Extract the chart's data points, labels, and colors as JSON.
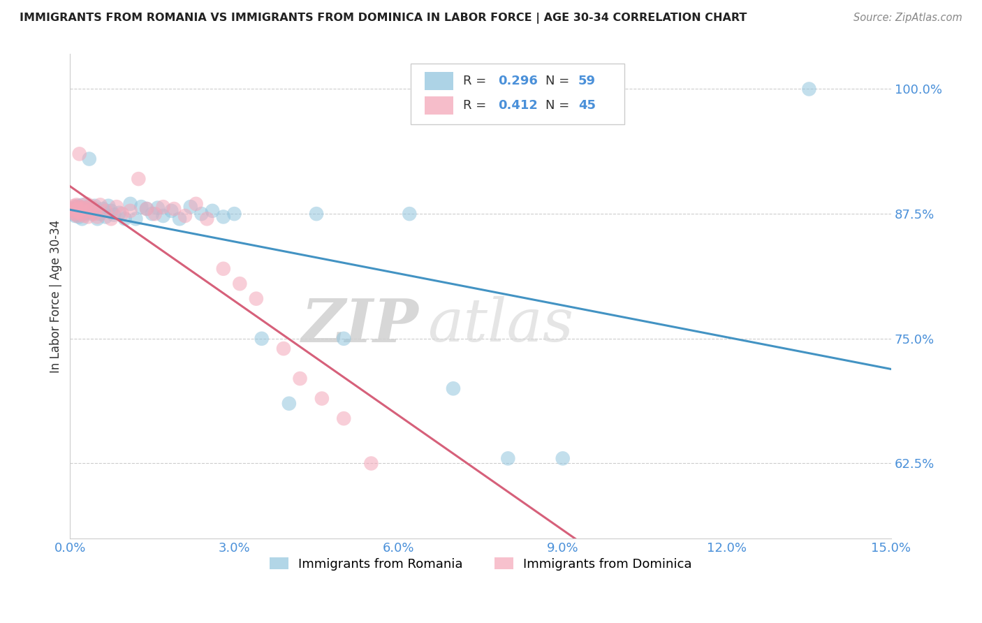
{
  "title": "IMMIGRANTS FROM ROMANIA VS IMMIGRANTS FROM DOMINICA IN LABOR FORCE | AGE 30-34 CORRELATION CHART",
  "source": "Source: ZipAtlas.com",
  "ylabel": "In Labor Force | Age 30-34",
  "xlabel": "",
  "xlim": [
    0.0,
    15.0
  ],
  "ylim": [
    55.0,
    103.5
  ],
  "yticks": [
    62.5,
    75.0,
    87.5,
    100.0
  ],
  "ytick_labels": [
    "62.5%",
    "75.0%",
    "87.5%",
    "100.0%"
  ],
  "xticks": [
    0.0,
    3.0,
    6.0,
    9.0,
    12.0,
    15.0
  ],
  "xtick_labels": [
    "0.0%",
    "3.0%",
    "6.0%",
    "9.0%",
    "12.0%",
    "15.0%"
  ],
  "romania_color": "#92c5de",
  "dominica_color": "#f4a7b9",
  "romania_line_color": "#4393c3",
  "dominica_line_color": "#d6607a",
  "romania_label": "Immigrants from Romania",
  "dominica_label": "Immigrants from Dominica",
  "watermark_color": "#d8d8d8",
  "tick_color": "#4a90d9",
  "grid_color": "#cccccc",
  "title_color": "#222222",
  "source_color": "#888888",
  "ylabel_color": "#333333",
  "legend_border_color": "#cccccc",
  "romania_x": [
    0.05,
    0.07,
    0.08,
    0.09,
    0.1,
    0.11,
    0.12,
    0.13,
    0.14,
    0.15,
    0.16,
    0.17,
    0.18,
    0.19,
    0.2,
    0.22,
    0.23,
    0.25,
    0.27,
    0.28,
    0.3,
    0.32,
    0.35,
    0.37,
    0.4,
    0.43,
    0.45,
    0.5,
    0.55,
    0.6,
    0.65,
    0.7,
    0.75,
    0.8,
    0.9,
    1.0,
    1.1,
    1.2,
    1.3,
    1.4,
    1.5,
    1.6,
    1.7,
    1.85,
    2.0,
    2.2,
    2.4,
    2.6,
    2.8,
    3.0,
    3.5,
    4.0,
    4.5,
    5.0,
    6.2,
    7.0,
    8.0,
    9.0,
    13.5
  ],
  "romania_y": [
    87.5,
    87.8,
    88.0,
    87.3,
    88.2,
    87.6,
    88.0,
    87.4,
    87.9,
    88.3,
    87.2,
    87.8,
    88.1,
    87.5,
    87.9,
    87.0,
    88.4,
    88.0,
    87.5,
    87.8,
    87.6,
    88.2,
    93.0,
    87.9,
    87.5,
    88.1,
    88.3,
    87.0,
    87.5,
    88.0,
    87.2,
    88.3,
    87.8,
    87.4,
    87.6,
    87.0,
    88.5,
    87.0,
    88.2,
    88.0,
    87.5,
    88.1,
    87.3,
    87.8,
    87.0,
    88.2,
    87.5,
    87.8,
    87.2,
    87.5,
    75.0,
    68.5,
    87.5,
    75.0,
    87.5,
    70.0,
    63.0,
    63.0,
    100.0
  ],
  "dominica_x": [
    0.05,
    0.07,
    0.08,
    0.09,
    0.1,
    0.11,
    0.12,
    0.13,
    0.14,
    0.15,
    0.17,
    0.18,
    0.2,
    0.22,
    0.25,
    0.27,
    0.3,
    0.33,
    0.35,
    0.38,
    0.4,
    0.45,
    0.5,
    0.55,
    0.65,
    0.75,
    0.85,
    0.95,
    1.1,
    1.25,
    1.4,
    1.55,
    1.7,
    1.9,
    2.1,
    2.3,
    2.5,
    2.8,
    3.1,
    3.4,
    3.9,
    4.2,
    4.6,
    5.0,
    5.5
  ],
  "dominica_y": [
    88.0,
    88.3,
    87.5,
    87.8,
    88.2,
    87.6,
    88.4,
    87.3,
    88.0,
    87.7,
    93.5,
    88.2,
    87.5,
    88.0,
    87.3,
    88.1,
    88.5,
    87.2,
    87.8,
    88.3,
    88.0,
    87.5,
    87.2,
    88.4,
    87.8,
    87.0,
    88.2,
    87.5,
    87.8,
    91.0,
    88.0,
    87.5,
    88.2,
    88.0,
    87.3,
    88.5,
    87.0,
    82.0,
    80.5,
    79.0,
    74.0,
    71.0,
    69.0,
    67.0,
    62.5
  ]
}
